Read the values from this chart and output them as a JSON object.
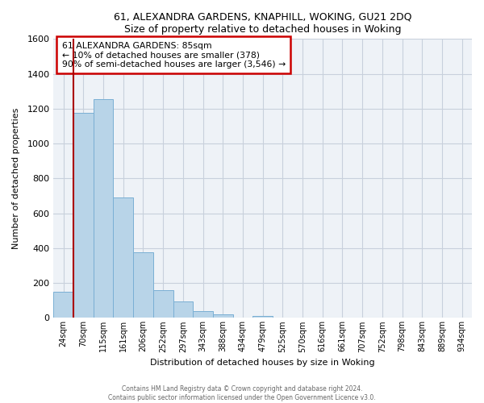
{
  "title": "61, ALEXANDRA GARDENS, KNAPHILL, WOKING, GU21 2DQ",
  "subtitle": "Size of property relative to detached houses in Woking",
  "xlabel": "Distribution of detached houses by size in Woking",
  "ylabel": "Number of detached properties",
  "bar_labels": [
    "24sqm",
    "70sqm",
    "115sqm",
    "161sqm",
    "206sqm",
    "252sqm",
    "297sqm",
    "343sqm",
    "388sqm",
    "434sqm",
    "479sqm",
    "525sqm",
    "570sqm",
    "616sqm",
    "661sqm",
    "707sqm",
    "752sqm",
    "798sqm",
    "843sqm",
    "889sqm",
    "934sqm"
  ],
  "bar_values": [
    150,
    1175,
    1255,
    690,
    375,
    160,
    93,
    37,
    22,
    0,
    10,
    0,
    0,
    0,
    0,
    0,
    0,
    0,
    0,
    0,
    0
  ],
  "bar_color": "#b8d4e8",
  "bar_edge_color": "#7aafd4",
  "property_line_color": "#aa0000",
  "ylim": [
    0,
    1600
  ],
  "yticks": [
    0,
    200,
    400,
    600,
    800,
    1000,
    1200,
    1400,
    1600
  ],
  "annotation_title": "61 ALEXANDRA GARDENS: 85sqm",
  "annotation_line1": "← 10% of detached houses are smaller (378)",
  "annotation_line2": "90% of semi-detached houses are larger (3,546) →",
  "footer1": "Contains HM Land Registry data © Crown copyright and database right 2024.",
  "footer2": "Contains public sector information licensed under the Open Government Licence v3.0.",
  "background_color": "#ffffff",
  "plot_bg_color": "#eef2f7",
  "grid_color": "#c8d0dc"
}
